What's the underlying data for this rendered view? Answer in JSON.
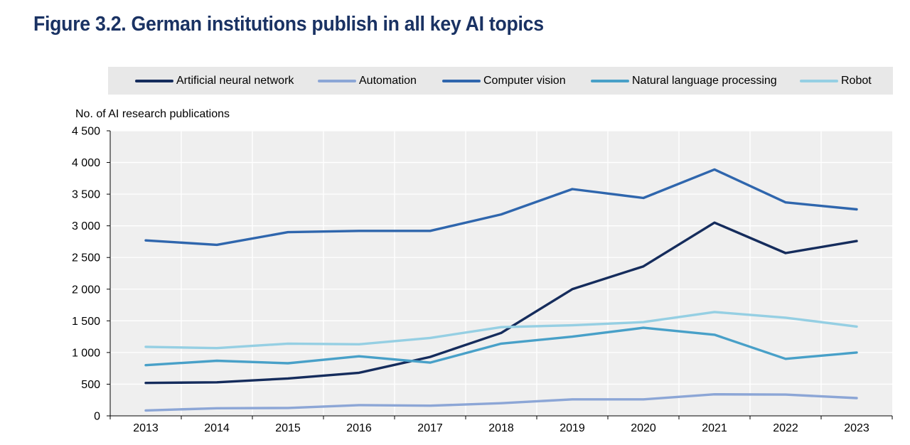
{
  "figure": {
    "title": "Figure 3.2. German institutions publish in all key AI topics"
  },
  "chart_data": {
    "type": "line",
    "ylabel": "No. of AI research publications",
    "xlabel": "",
    "x": [
      "2013",
      "2014",
      "2015",
      "2016",
      "2017",
      "2018",
      "2019",
      "2020",
      "2021",
      "2022",
      "2023"
    ],
    "ylim": [
      0,
      4500
    ],
    "yticks": [
      0,
      500,
      1000,
      1500,
      2000,
      2500,
      3000,
      3500,
      4000,
      4500
    ],
    "ytick_labels": [
      "0",
      "500",
      "1 000",
      "1 500",
      "2 000",
      "2 500",
      "3 000",
      "3 500",
      "4 000",
      "4 500"
    ],
    "grid": true,
    "legend_position": "top",
    "series": [
      {
        "name": "Artificial neural network",
        "color": "#152c5c",
        "values": [
          520,
          530,
          590,
          680,
          930,
          1310,
          2000,
          2360,
          3050,
          2570,
          2760
        ]
      },
      {
        "name": "Automation",
        "color": "#8ca6d6",
        "values": [
          85,
          120,
          125,
          170,
          160,
          200,
          260,
          260,
          340,
          335,
          280
        ]
      },
      {
        "name": "Computer vision",
        "color": "#2f66ad",
        "values": [
          2770,
          2700,
          2900,
          2920,
          2920,
          3180,
          3580,
          3440,
          3890,
          3370,
          3260
        ]
      },
      {
        "name": "Natural language processing",
        "color": "#48a0c8",
        "values": [
          800,
          870,
          830,
          940,
          840,
          1140,
          1250,
          1390,
          1280,
          900,
          1000
        ]
      },
      {
        "name": "Robot",
        "color": "#95cfe3",
        "values": [
          1090,
          1070,
          1140,
          1130,
          1230,
          1400,
          1430,
          1480,
          1640,
          1550,
          1410
        ]
      }
    ]
  }
}
